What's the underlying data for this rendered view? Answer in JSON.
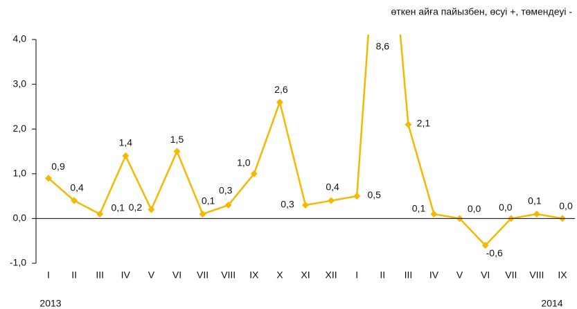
{
  "chart_data": {
    "type": "line",
    "subtitle": "өткен айға пайызбен, өсуі +, төмендеуі -",
    "categories": [
      "I",
      "II",
      "III",
      "IV",
      "V",
      "VI",
      "VII",
      "VIII",
      "IX",
      "X",
      "XI",
      "XII",
      "I",
      "II",
      "III",
      "IV",
      "V",
      "VI",
      "VII",
      "VIII",
      "IX"
    ],
    "year_labels": [
      "2013",
      "2014"
    ],
    "series": [
      {
        "color": "#f5b800",
        "values": [
          0.9,
          0.4,
          0.1,
          1.4,
          0.2,
          1.5,
          0.1,
          0.3,
          1.0,
          2.6,
          0.3,
          0.4,
          0.5,
          8.6,
          2.1,
          0.1,
          0.0,
          -0.6,
          0.0,
          0.1,
          0.0
        ],
        "value_labels": [
          "0,9",
          "0,4",
          "0,1",
          "1,4",
          "0,2",
          "1,5",
          "0,1",
          "0,3",
          "1,0",
          "2,6",
          "0,3",
          "0,4",
          "0,5",
          "8,6",
          "2,1",
          "0,1",
          "0,0",
          "-0,6",
          "0,0",
          "0,1",
          "0,0"
        ]
      }
    ],
    "ylim": [
      -1,
      4
    ],
    "yticks": [
      {
        "value": -1,
        "label": "-1,0"
      },
      {
        "value": 0,
        "label": "0,0"
      },
      {
        "value": 1,
        "label": "1,0"
      },
      {
        "value": 2,
        "label": "2,0"
      },
      {
        "value": 3,
        "label": "3,0"
      },
      {
        "value": 4,
        "label": "4,0"
      }
    ]
  }
}
